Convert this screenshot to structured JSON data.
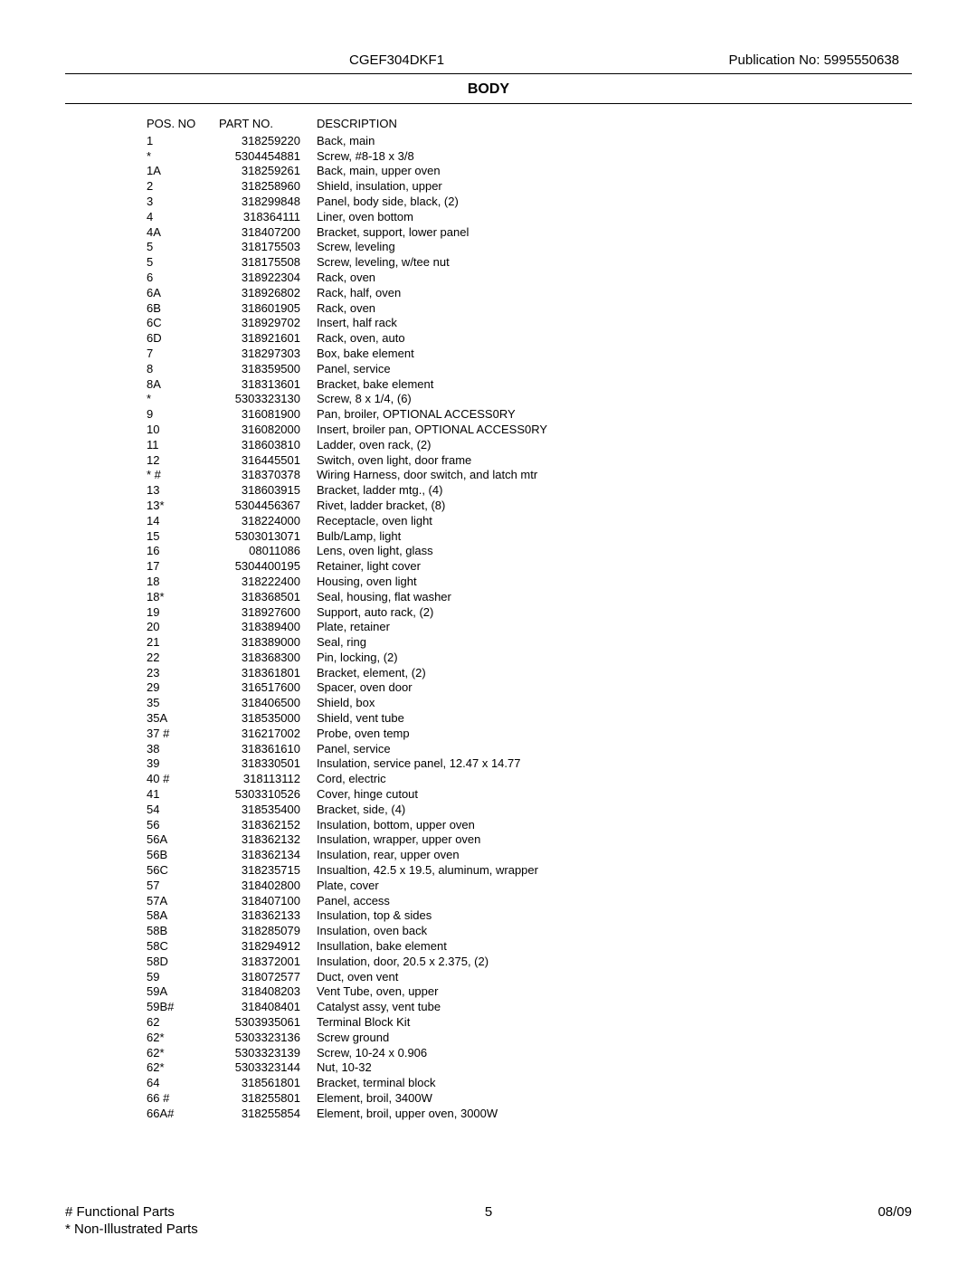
{
  "header": {
    "model": "CGEF304DKF1",
    "publication": "Publication No:  5995550638"
  },
  "section_title": "BODY",
  "columns": {
    "pos": "POS. NO",
    "part": "PART NO.",
    "desc": "DESCRIPTION"
  },
  "rows": [
    {
      "pos": "1",
      "part": "318259220",
      "desc": "Back, main"
    },
    {
      "pos": "*",
      "part": "5304454881",
      "desc": "Screw, #8-18 x 3/8"
    },
    {
      "pos": "1A",
      "part": "318259261",
      "desc": "Back, main, upper oven"
    },
    {
      "pos": "2",
      "part": "318258960",
      "desc": "Shield, insulation, upper"
    },
    {
      "pos": "3",
      "part": "318299848",
      "desc": "Panel, body side, black, (2)"
    },
    {
      "pos": "4",
      "part": "318364111",
      "desc": "Liner, oven bottom"
    },
    {
      "pos": "4A",
      "part": "318407200",
      "desc": "Bracket, support, lower panel"
    },
    {
      "pos": "5",
      "part": "318175503",
      "desc": "Screw, leveling"
    },
    {
      "pos": "5",
      "part": "318175508",
      "desc": "Screw, leveling, w/tee nut"
    },
    {
      "pos": "6",
      "part": "318922304",
      "desc": "Rack, oven"
    },
    {
      "pos": "6A",
      "part": "318926802",
      "desc": "Rack, half, oven"
    },
    {
      "pos": "6B",
      "part": "318601905",
      "desc": "Rack, oven"
    },
    {
      "pos": "6C",
      "part": "318929702",
      "desc": "Insert, half rack"
    },
    {
      "pos": "6D",
      "part": "318921601",
      "desc": "Rack, oven, auto"
    },
    {
      "pos": "7",
      "part": "318297303",
      "desc": "Box, bake element"
    },
    {
      "pos": "8",
      "part": "318359500",
      "desc": "Panel, service"
    },
    {
      "pos": "8A",
      "part": "318313601",
      "desc": "Bracket, bake element"
    },
    {
      "pos": "*",
      "part": "5303323130",
      "desc": "Screw, 8 x 1/4, (6)"
    },
    {
      "pos": "9",
      "part": "316081900",
      "desc": "Pan, broiler, OPTIONAL ACCESS0RY"
    },
    {
      "pos": "10",
      "part": "316082000",
      "desc": "Insert, broiler pan, OPTIONAL ACCESS0RY"
    },
    {
      "pos": "11",
      "part": "318603810",
      "desc": "Ladder, oven rack, (2)"
    },
    {
      "pos": "12",
      "part": "316445501",
      "desc": "Switch, oven light, door frame"
    },
    {
      "pos": "*  #",
      "part": "318370378",
      "desc": "Wiring Harness, door switch, and latch mtr"
    },
    {
      "pos": "13",
      "part": "318603915",
      "desc": "Bracket, ladder mtg., (4)"
    },
    {
      "pos": "13*",
      "part": "5304456367",
      "desc": "Rivet, ladder bracket, (8)"
    },
    {
      "pos": "14",
      "part": "318224000",
      "desc": "Receptacle, oven light"
    },
    {
      "pos": "15",
      "part": "5303013071",
      "desc": "Bulb/Lamp, light"
    },
    {
      "pos": "16",
      "part": "08011086",
      "desc": "Lens, oven light, glass"
    },
    {
      "pos": "17",
      "part": "5304400195",
      "desc": "Retainer, light cover"
    },
    {
      "pos": "18",
      "part": "318222400",
      "desc": "Housing, oven light"
    },
    {
      "pos": "18*",
      "part": "318368501",
      "desc": "Seal, housing, flat washer"
    },
    {
      "pos": "19",
      "part": "318927600",
      "desc": "Support, auto rack, (2)"
    },
    {
      "pos": "20",
      "part": "318389400",
      "desc": "Plate, retainer"
    },
    {
      "pos": "21",
      "part": "318389000",
      "desc": "Seal, ring"
    },
    {
      "pos": "22",
      "part": "318368300",
      "desc": "Pin, locking, (2)"
    },
    {
      "pos": "23",
      "part": "318361801",
      "desc": "Bracket, element, (2)"
    },
    {
      "pos": "29",
      "part": "316517600",
      "desc": "Spacer, oven door"
    },
    {
      "pos": "35",
      "part": "318406500",
      "desc": "Shield, box"
    },
    {
      "pos": "35A",
      "part": "318535000",
      "desc": "Shield, vent tube"
    },
    {
      "pos": "37 #",
      "part": "316217002",
      "desc": "Probe, oven temp"
    },
    {
      "pos": "38",
      "part": "318361610",
      "desc": "Panel, service"
    },
    {
      "pos": "39",
      "part": "318330501",
      "desc": "Insulation, service panel, 12.47 x 14.77"
    },
    {
      "pos": "40 #",
      "part": "318113112",
      "desc": "Cord, electric"
    },
    {
      "pos": "41",
      "part": "5303310526",
      "desc": "Cover, hinge cutout"
    },
    {
      "pos": "54",
      "part": "318535400",
      "desc": "Bracket, side, (4)"
    },
    {
      "pos": "56",
      "part": "318362152",
      "desc": "Insulation, bottom, upper oven"
    },
    {
      "pos": "56A",
      "part": "318362132",
      "desc": "Insulation, wrapper, upper oven"
    },
    {
      "pos": "56B",
      "part": "318362134",
      "desc": "Insulation, rear, upper oven"
    },
    {
      "pos": "56C",
      "part": "318235715",
      "desc": "Insualtion, 42.5 x 19.5, aluminum, wrapper"
    },
    {
      "pos": "57",
      "part": "318402800",
      "desc": "Plate, cover"
    },
    {
      "pos": "57A",
      "part": "318407100",
      "desc": "Panel, access"
    },
    {
      "pos": "58A",
      "part": "318362133",
      "desc": "Insulation, top & sides"
    },
    {
      "pos": "58B",
      "part": "318285079",
      "desc": "Insulation, oven back"
    },
    {
      "pos": "58C",
      "part": "318294912",
      "desc": "Insullation, bake element"
    },
    {
      "pos": "58D",
      "part": "318372001",
      "desc": "Insulation, door, 20.5 x 2.375, (2)"
    },
    {
      "pos": "59",
      "part": "318072577",
      "desc": "Duct, oven vent"
    },
    {
      "pos": "59A",
      "part": "318408203",
      "desc": "Vent Tube, oven, upper"
    },
    {
      "pos": "59B#",
      "part": "318408401",
      "desc": "Catalyst assy, vent tube"
    },
    {
      "pos": "62",
      "part": "5303935061",
      "desc": "Terminal Block Kit"
    },
    {
      "pos": "62*",
      "part": "5303323136",
      "desc": "Screw ground"
    },
    {
      "pos": "62*",
      "part": "5303323139",
      "desc": "Screw, 10-24 x 0.906"
    },
    {
      "pos": "62*",
      "part": "5303323144",
      "desc": "Nut, 10-32"
    },
    {
      "pos": "64",
      "part": "318561801",
      "desc": "Bracket, terminal block"
    },
    {
      "pos": "66 #",
      "part": "318255801",
      "desc": "Element, broil, 3400W"
    },
    {
      "pos": "66A#",
      "part": "318255854",
      "desc": "Element, broil, upper oven, 3000W"
    }
  ],
  "footer": {
    "note1": "# Functional Parts",
    "note2": "* Non-Illustrated Parts",
    "page": "5",
    "date": "08/09"
  }
}
